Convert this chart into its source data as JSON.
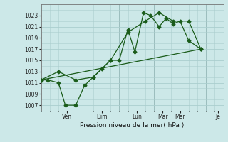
{
  "xlabel": "Pression niveau de la mer( hPa )",
  "background_color": "#cce8e8",
  "grid_color": "#aacece",
  "line_color": "#1a5c1a",
  "ylim": [
    1006,
    1025
  ],
  "yticks": [
    1007,
    1009,
    1011,
    1013,
    1015,
    1017,
    1019,
    1021,
    1023
  ],
  "xlim": [
    0,
    10.5
  ],
  "day_positions": [
    1.5,
    3.5,
    5.5,
    7.0,
    8.0,
    10.2
  ],
  "day_labels": [
    "Ven",
    "Dim",
    "Lun",
    "Mar",
    "Mer",
    "Je"
  ],
  "vline_positions": [
    2.5,
    4.5,
    6.5,
    7.5,
    9.0
  ],
  "series1": {
    "x": [
      0.0,
      0.4,
      1.0,
      1.4,
      2.0,
      2.5,
      3.0,
      3.5,
      4.0,
      4.5,
      5.0,
      5.4,
      5.9,
      6.3,
      6.8,
      7.2,
      7.6,
      8.0,
      8.5,
      9.2
    ],
    "y": [
      1011.5,
      1011.5,
      1011.0,
      1007.0,
      1007.0,
      1010.5,
      1012.0,
      1013.5,
      1015.0,
      1015.0,
      1020.5,
      1016.5,
      1023.5,
      1023.0,
      1021.0,
      1022.5,
      1021.5,
      1022.0,
      1018.5,
      1017.0
    ]
  },
  "series2": {
    "x": [
      0.0,
      1.0,
      2.0,
      3.0,
      4.0,
      5.0,
      6.0,
      6.8,
      7.6,
      8.5,
      9.2
    ],
    "y": [
      1011.5,
      1013.0,
      1011.5,
      1012.0,
      1015.0,
      1020.0,
      1022.0,
      1023.5,
      1022.0,
      1022.0,
      1017.0
    ]
  },
  "series3": {
    "x": [
      0.0,
      9.2
    ],
    "y": [
      1011.5,
      1017.0
    ]
  }
}
